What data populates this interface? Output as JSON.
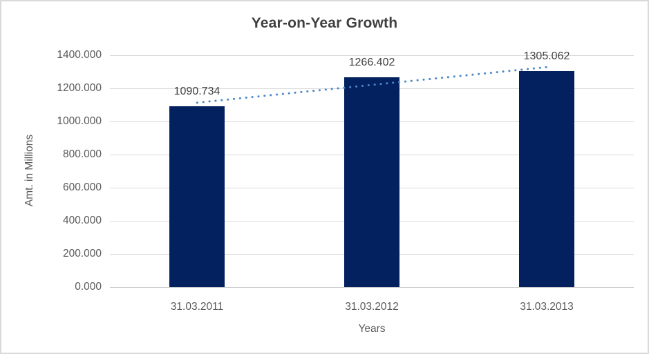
{
  "chart_data": {
    "type": "bar",
    "title": "Year-on-Year Growth",
    "xlabel": "Years",
    "ylabel": "Amt. in Millions",
    "categories": [
      "31.03.2011",
      "31.03.2012",
      "31.03.2013"
    ],
    "values": [
      1090.734,
      1266.402,
      1305.062
    ],
    "data_labels": [
      "1090.734",
      "1266.402",
      "1305.062"
    ],
    "ylim": [
      0,
      1400
    ],
    "ytick_step": 200,
    "ytick_labels_top_to_bottom": [
      "1400.000",
      "1200.000",
      "1000.000",
      "800.000",
      "600.000",
      "400.000",
      "200.000",
      "0.000"
    ],
    "grid": true,
    "legend_position": "none",
    "trendline": {
      "type": "linear",
      "style": "dotted"
    },
    "colors": {
      "bar": "#02215E",
      "trendline": "#4A86C8",
      "gridline": "#D9D9D9",
      "axis_line": "#C9C9C9",
      "border": "#D9D9D9",
      "title_text": "#3F3F3F",
      "data_label_text": "#404040",
      "axis_text": "#595959",
      "background": "#FFFFFF"
    }
  }
}
